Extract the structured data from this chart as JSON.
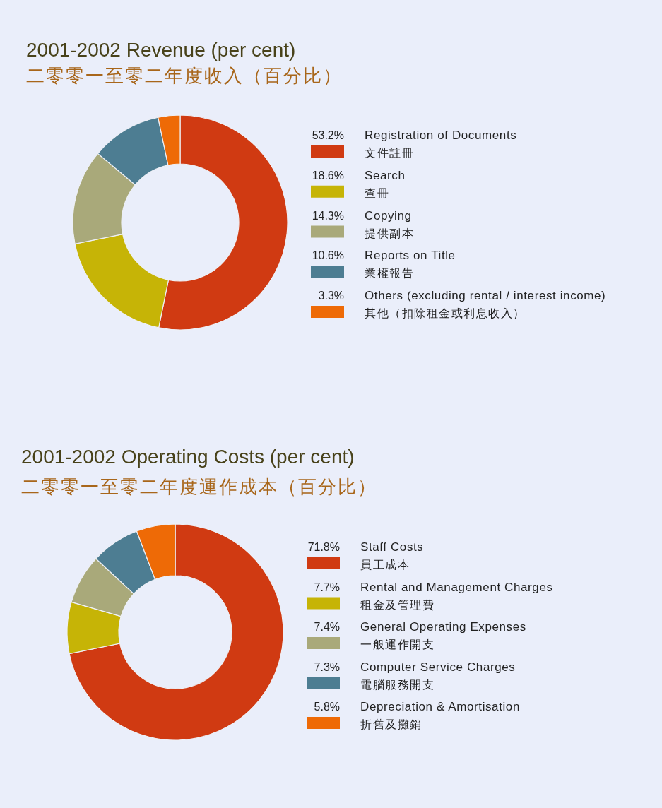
{
  "chart_data": [
    {
      "type": "donut",
      "title": "2001-2002 Revenue (per cent)",
      "subtitle": "二零零一至零二年度收入（百分比）",
      "categories": [
        "Registration of Documents\n文件註冊",
        "Search\n查冊",
        "Copying\n提供副本",
        "Reports on Title\n業權報告",
        "Others (excluding rental / interest income)\n其他（扣除租金或利息收入）"
      ],
      "values": [
        53.2,
        18.6,
        14.3,
        10.6,
        3.3
      ],
      "annotations": [
        "53.2%",
        "18.6%",
        "14.3%",
        "10.6%",
        "3.3%"
      ],
      "colors": [
        "#d03a12",
        "#c6b406",
        "#a9a97a",
        "#4d7d92",
        "#ee6a06"
      ],
      "legend": "right"
    },
    {
      "type": "donut",
      "title": "2001-2002 Operating Costs (per cent)",
      "subtitle": "二零零一至零二年度運作成本（百分比）",
      "categories": [
        "Staff Costs\n員工成本",
        "Rental and Management Charges\n租金及管理費",
        "General Operating Expenses\n一般運作開支",
        "Computer Service Charges\n電腦服務開支",
        "Depreciation & Amortisation\n折舊及攤銷"
      ],
      "values": [
        71.8,
        7.7,
        7.4,
        7.3,
        5.8
      ],
      "annotations": [
        "71.8%",
        "7.7%",
        "7.4%",
        "7.3%",
        "5.8%"
      ],
      "colors": [
        "#d03a12",
        "#c6b406",
        "#a9a97a",
        "#4d7d92",
        "#ee6a06"
      ],
      "legend": "right"
    }
  ]
}
